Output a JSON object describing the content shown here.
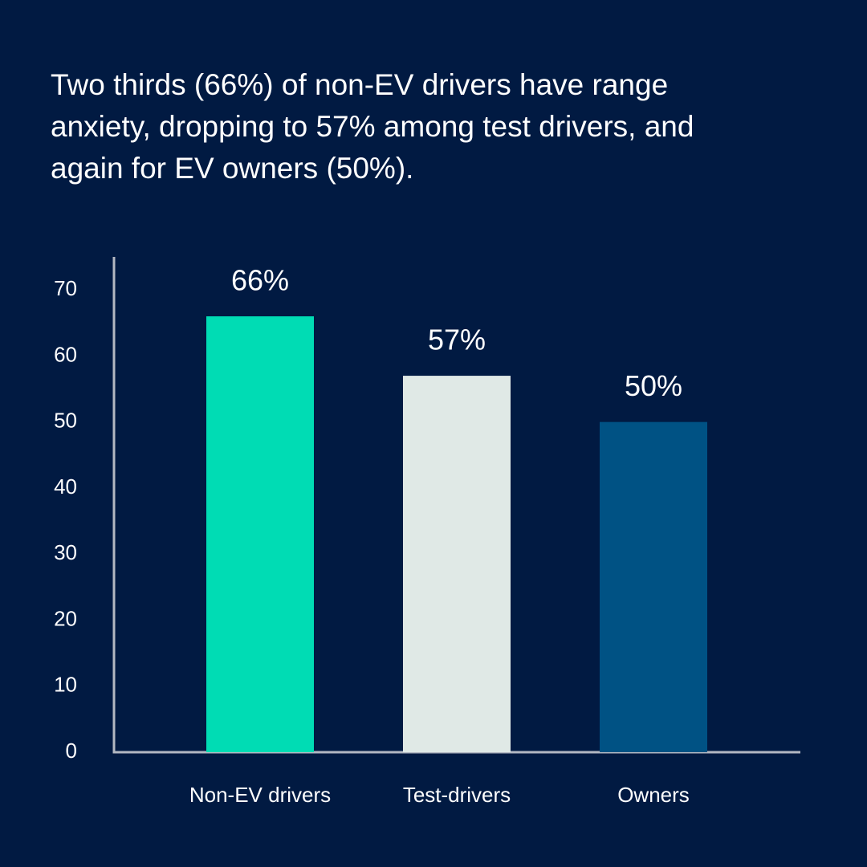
{
  "chart_data": {
    "type": "bar",
    "title": "Two thirds (66%) of non-EV drivers have range anxiety, dropping to 57% among test drivers, and again for EV owners (50%).",
    "categories": [
      "Non-EV drivers",
      "Test-drivers",
      "Owners"
    ],
    "values": [
      66,
      57,
      50
    ],
    "value_labels": [
      "66%",
      "57%",
      "50%"
    ],
    "colors": [
      "#00dcb4",
      "#e0e9e6",
      "#005284"
    ],
    "ylim": [
      0,
      75
    ],
    "yticks": [
      0,
      10,
      20,
      30,
      40,
      50,
      60,
      70
    ],
    "grid": false
  }
}
